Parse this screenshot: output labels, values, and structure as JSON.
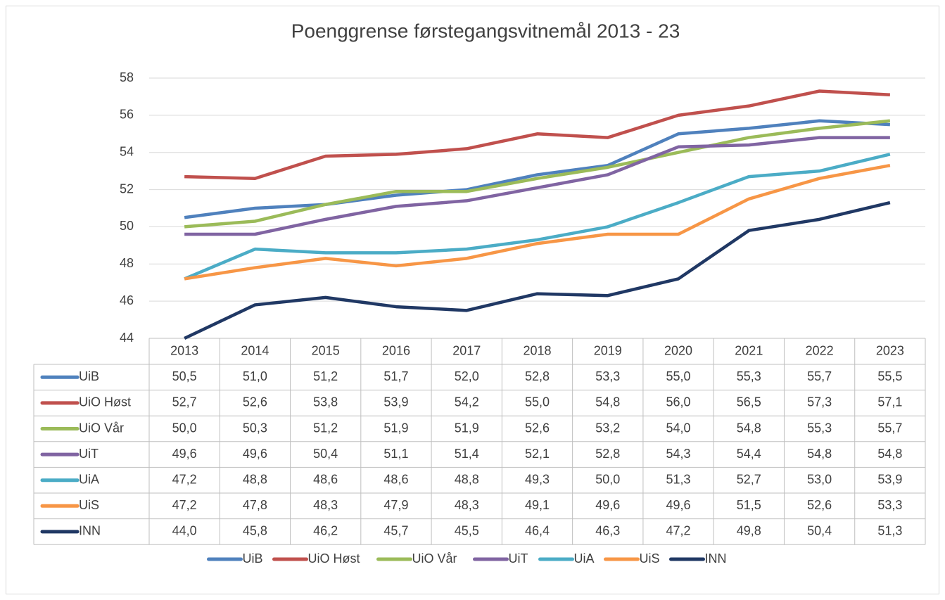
{
  "chart_data": {
    "type": "line",
    "title": "Poenggrense førstegangsvitnemål 2013 - 23",
    "categories": [
      "2013",
      "2014",
      "2015",
      "2016",
      "2017",
      "2018",
      "2019",
      "2020",
      "2021",
      "2022",
      "2023"
    ],
    "ylim": [
      44,
      58
    ],
    "yticks": [
      44,
      46,
      48,
      50,
      52,
      54,
      56,
      58
    ],
    "grid": true,
    "legend": "bottom",
    "series": [
      {
        "name": "UiB",
        "color": "#4f81bd",
        "values": [
          50.5,
          51.0,
          51.2,
          51.7,
          52.0,
          52.8,
          53.3,
          55.0,
          55.3,
          55.7,
          55.5
        ],
        "value_labels": [
          "50,5",
          "51,0",
          "51,2",
          "51,7",
          "52,0",
          "52,8",
          "53,3",
          "55,0",
          "55,3",
          "55,7",
          "55,5"
        ]
      },
      {
        "name": "UiO Høst",
        "color": "#c0504d",
        "values": [
          52.7,
          52.6,
          53.8,
          53.9,
          54.2,
          55.0,
          54.8,
          56.0,
          56.5,
          57.3,
          57.1
        ],
        "value_labels": [
          "52,7",
          "52,6",
          "53,8",
          "53,9",
          "54,2",
          "55,0",
          "54,8",
          "56,0",
          "56,5",
          "57,3",
          "57,1"
        ]
      },
      {
        "name": "UiO Vår",
        "color": "#9bbb59",
        "values": [
          50.0,
          50.3,
          51.2,
          51.9,
          51.9,
          52.6,
          53.2,
          54.0,
          54.8,
          55.3,
          55.7
        ],
        "value_labels": [
          "50,0",
          "50,3",
          "51,2",
          "51,9",
          "51,9",
          "52,6",
          "53,2",
          "54,0",
          "54,8",
          "55,3",
          "55,7"
        ]
      },
      {
        "name": "UiT",
        "color": "#8064a2",
        "values": [
          49.6,
          49.6,
          50.4,
          51.1,
          51.4,
          52.1,
          52.8,
          54.3,
          54.4,
          54.8,
          54.8
        ],
        "value_labels": [
          "49,6",
          "49,6",
          "50,4",
          "51,1",
          "51,4",
          "52,1",
          "52,8",
          "54,3",
          "54,4",
          "54,8",
          "54,8"
        ]
      },
      {
        "name": "UiA",
        "color": "#4bacc6",
        "values": [
          47.2,
          48.8,
          48.6,
          48.6,
          48.8,
          49.3,
          50.0,
          51.3,
          52.7,
          53.0,
          53.9
        ],
        "value_labels": [
          "47,2",
          "48,8",
          "48,6",
          "48,6",
          "48,8",
          "49,3",
          "50,0",
          "51,3",
          "52,7",
          "53,0",
          "53,9"
        ]
      },
      {
        "name": "UiS",
        "color": "#f79646",
        "values": [
          47.2,
          47.8,
          48.3,
          47.9,
          48.3,
          49.1,
          49.6,
          49.6,
          51.5,
          52.6,
          53.3
        ],
        "value_labels": [
          "47,2",
          "47,8",
          "48,3",
          "47,9",
          "48,3",
          "49,1",
          "49,6",
          "49,6",
          "51,5",
          "52,6",
          "53,3"
        ]
      },
      {
        "name": "INN",
        "color": "#203864",
        "values": [
          44.0,
          45.8,
          46.2,
          45.7,
          45.5,
          46.4,
          46.3,
          47.2,
          49.8,
          50.4,
          51.3
        ],
        "value_labels": [
          "44,0",
          "45,8",
          "46,2",
          "45,7",
          "45,5",
          "46,4",
          "46,3",
          "47,2",
          "49,8",
          "50,4",
          "51,3"
        ]
      }
    ]
  }
}
